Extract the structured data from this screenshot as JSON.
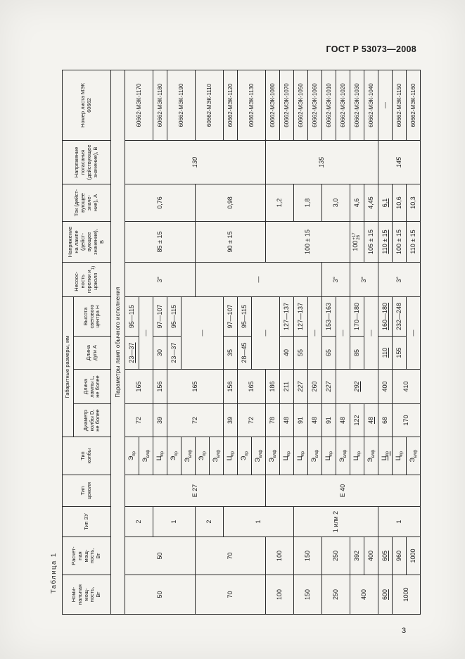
{
  "page": {
    "gost_header": "ГОСТ Р 53073—2008",
    "page_number": "3"
  },
  "table": {
    "caption": "Таблица 1",
    "section_row": "Параметры ламп обычного исполнения",
    "columns": {
      "nominal": "Номи-\nнальная\nмощ-\nность,\nВт",
      "calc": "Расчет-\nная\nмощ-\nность,\nВт",
      "ballast": "Тип ЗУ",
      "cap": "Тип\nцоколя",
      "bulb": "Тип\nколбы",
      "dims_group": "Габаритные размеры, мм",
      "diameter": "Диаметр\nколбы D,\nне более",
      "length": "Длина\nлампы L,\nне более",
      "arc": "Длина\nдуги А",
      "center_height": "Высота\nсветового\nцентра Н",
      "alignment": "Несоос-\nность\nгорелки и\nцоколя",
      "alignment_sup": "1)",
      "lamp_voltage": "Напряжение\nна лампе\n(дейст-\nвующее\nзначение),\nВ",
      "current": "Ток (дейст-\nвующее\nзначе-\nние), А",
      "ext_voltage": "Напряжение\nпогасания\n(действующее\nзначение), В",
      "iec": "Номер листа МЭК\n60662"
    },
    "rows": [
      [
        {
          "t": "50",
          "rs": 5
        },
        {
          "t": "50",
          "rs": 5
        },
        {
          "t": "2",
          "rs": 2
        },
        {
          "t": "Е 27",
          "rs": 10
        },
        {
          "t": "Э",
          "sub": "пр"
        },
        {
          "t": "72",
          "rs": 2
        },
        {
          "t": "165",
          "rs": 2
        },
        {
          "t": "23—37",
          "u": true
        },
        {
          "t": "95—115"
        },
        {
          "t": "3°",
          "rs": 5
        },
        {
          "t": "85 ± 15",
          "rs": 5
        },
        {
          "t": "0,76",
          "rs": 5
        },
        {
          "t": "130",
          "i": true,
          "rs": 10
        },
        {
          "t": "60662-МЭК-1170",
          "rs": 2
        }
      ],
      [
        {
          "t": "Э",
          "sub": "влф"
        },
        {
          "t": "—",
          "cs": 2
        }
      ],
      [
        {
          "t": "1",
          "rs": 3
        },
        {
          "t": "Ц",
          "sub": "пр"
        },
        {
          "t": "39"
        },
        {
          "t": "156"
        },
        {
          "t": "30"
        },
        {
          "t": "97—107"
        },
        {
          "t": "60662-МЭК-1180"
        }
      ],
      [
        {
          "t": "Э",
          "sub": "пр"
        },
        {
          "t": "72",
          "rs": 4
        },
        {
          "t": "165",
          "rs": 4
        },
        {
          "t": "23—37"
        },
        {
          "t": "95—115"
        },
        {
          "t": "60662-МЭК-1190",
          "rs": 2
        }
      ],
      [
        {
          "t": "Э",
          "sub": "влф"
        },
        {
          "t": "—",
          "cs": 2,
          "rs": 3
        }
      ],
      [
        {
          "t": "70",
          "rs": 5
        },
        {
          "t": "70",
          "rs": 5
        },
        {
          "t": "2",
          "rs": 2
        },
        {
          "t": "Э",
          "sub": "пр"
        },
        {
          "t": "—",
          "rs": 9
        },
        {
          "t": "90 ± 15",
          "rs": 5
        },
        {
          "t": "0,98",
          "rs": 5
        },
        {
          "t": "60662-МЭК-1110",
          "rs": 2
        }
      ],
      [
        {
          "t": "Э",
          "sub": "влф"
        }
      ],
      [
        {
          "t": "1",
          "rs": 5
        },
        {
          "t": "Ц",
          "sub": "пр"
        },
        {
          "t": "39"
        },
        {
          "t": "156"
        },
        {
          "t": "35"
        },
        {
          "t": "97—107"
        },
        {
          "t": "60662-МЭК-1120"
        }
      ],
      [
        {
          "t": "Э",
          "sub": "пр"
        },
        {
          "t": "72",
          "rs": 2
        },
        {
          "t": "165",
          "rs": 2
        },
        {
          "t": "28—45"
        },
        {
          "t": "95—115"
        },
        {
          "t": "60662-МЭК-1130",
          "rs": 2
        }
      ],
      [
        {
          "t": "Э",
          "sub": "влф"
        },
        {
          "t": "—",
          "cs": 2,
          "rs": 2
        }
      ],
      [
        {
          "t": "100",
          "rs": 2
        },
        {
          "t": "100",
          "rs": 2
        },
        {
          "t": "Е 40",
          "rs": 11
        },
        {
          "t": "Э",
          "sub": "влф"
        },
        {
          "t": "78"
        },
        {
          "t": "186"
        },
        {
          "t": "100 ± 15",
          "rs": 6
        },
        {
          "t": "1,2",
          "rs": 2
        },
        {
          "t": "135",
          "i": true,
          "rs": 8
        },
        {
          "t": "60662-МЭК-1080"
        }
      ],
      [
        {
          "t": "Ц",
          "sub": "пр"
        },
        {
          "t": "48"
        },
        {
          "t": "211"
        },
        {
          "t": "40"
        },
        {
          "t": "127—137"
        },
        {
          "t": "60662-МЭК-1070"
        }
      ],
      [
        {
          "t": "150",
          "rs": 2
        },
        {
          "t": "150",
          "rs": 2
        },
        {
          "t": "1 или 2",
          "rs": 6
        },
        {
          "t": "Ц",
          "sub": "пр"
        },
        {
          "t": "91"
        },
        {
          "t": "227",
          "i": true
        },
        {
          "t": "55"
        },
        {
          "t": "127—137"
        },
        {
          "t": "1,8",
          "rs": 2
        },
        {
          "t": "60662-МЭК-1050"
        }
      ],
      [
        {
          "t": "Э",
          "sub": "влф"
        },
        {
          "t": "48"
        },
        {
          "t": "260"
        },
        {
          "t": "—",
          "cs": 2
        },
        {
          "t": "60662-МЭК-1060"
        }
      ],
      [
        {
          "t": "250",
          "rs": 2
        },
        {
          "t": "250",
          "rs": 2
        },
        {
          "t": "Ц",
          "sub": "пр"
        },
        {
          "t": "91"
        },
        {
          "t": "227",
          "i": true
        },
        {
          "t": "65"
        },
        {
          "t": "153—163"
        },
        {
          "t": "3°",
          "rs": 2
        },
        {
          "t": "3,0",
          "rs": 2
        },
        {
          "t": "60662-МЭК-1010"
        }
      ],
      [
        {
          "t": "Э",
          "sub": "влф"
        },
        {
          "t": "48"
        },
        {
          "t": "292",
          "i": true,
          "u": true,
          "rs": 3
        },
        {
          "t": "—",
          "cs": 2
        },
        {
          "t": "60662-МЭК-1020"
        }
      ],
      [
        {
          "t": "400",
          "rs": 2
        },
        {
          "t": "392"
        },
        {
          "t": "Ц",
          "sub": "пр"
        },
        {
          "t": "122"
        },
        {
          "t": "85"
        },
        {
          "t": "170—180"
        },
        {
          "t": "3°",
          "rs": 2
        },
        {
          "t": "100",
          "ss": [
            "+17",
            "26"
          ]
        },
        {
          "t": "4,6"
        },
        {
          "t": "60662-МЭК-1030"
        }
      ],
      [
        {
          "t": "400"
        },
        {
          "t": "Э",
          "sub": "влф"
        },
        {
          "t": "48",
          "u": true
        },
        {
          "t": "—",
          "cs": 2
        },
        {
          "t": "105 ± 15"
        },
        {
          "t": "4,45"
        },
        {
          "t": "60662-МЭК-1040"
        }
      ],
      [
        {
          "t": "600",
          "u": true
        },
        {
          "t": "605",
          "u": true
        },
        {
          "t": "1",
          "rs": 3
        },
        {
          "t": "Ц",
          "sub": "пр",
          "u": true
        },
        {
          "t": "68"
        },
        {
          "t": "400"
        },
        {
          "t": "110",
          "u": true
        },
        {
          "t": "160—180",
          "u": true
        },
        {
          "t": "3°",
          "rs": 3
        },
        {
          "t": "110 ± 15",
          "u": true
        },
        {
          "t": "6,1",
          "u": true
        },
        {
          "t": "145",
          "i": true,
          "rs": 3
        },
        {
          "t": "—"
        }
      ],
      [
        {
          "t": "1000",
          "rs": 2
        },
        {
          "t": "960"
        },
        {
          "t": "Ц",
          "sub": "пр"
        },
        {
          "t": "170",
          "rs": 2
        },
        {
          "t": "410",
          "rs": 2
        },
        {
          "t": "155"
        },
        {
          "t": "232—248"
        },
        {
          "t": "100 ± 15"
        },
        {
          "t": "10,6"
        },
        {
          "t": "60662-МЭК-1150"
        }
      ],
      [
        {
          "t": "1000"
        },
        {
          "t": "Э",
          "sub": "влф"
        },
        {
          "t": "—",
          "cs": 2
        },
        {
          "t": "110 ± 15"
        },
        {
          "t": "10,3"
        },
        {
          "t": "60662-МЭК-1160"
        }
      ]
    ]
  }
}
